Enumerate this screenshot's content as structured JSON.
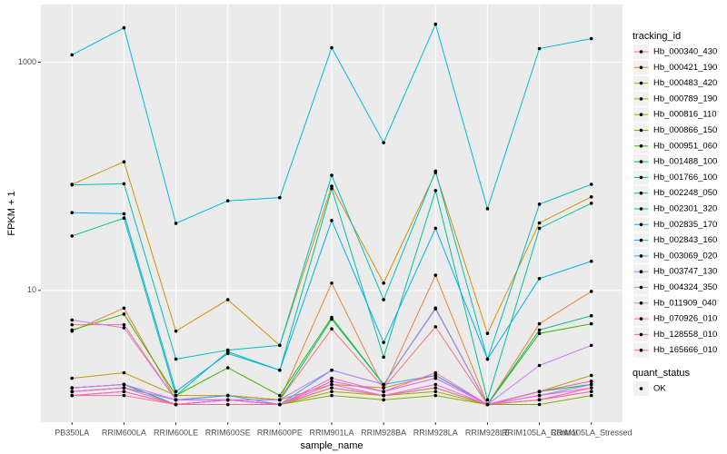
{
  "chart_data": {
    "type": "line",
    "x_label": "sample_name",
    "y_label": "FPKM + 1",
    "categories": [
      "PB350LA",
      "RRIM600LA",
      "RRIM600LE",
      "RRIM600SE",
      "RRIM600PE",
      "RRIM901LA",
      "RRIM928BA",
      "RRIM928LA",
      "RRIM928LE",
      "RRIM105LA_Control",
      "RRIM105LA_Stressed"
    ],
    "log_scale_y": true,
    "ylim": [
      0.7,
      3200
    ],
    "yticks": [
      10,
      1000
    ],
    "grid": true,
    "legend_title": "tracking_id",
    "legend_position": "right",
    "shape_legend": {
      "title": "quant_status",
      "labels": [
        "OK"
      ]
    },
    "series": [
      {
        "name": "Hb_000340_430",
        "color": "#F8766D",
        "values": [
          5.0,
          5.0,
          1.1,
          1.2,
          1.1,
          4.6,
          1.4,
          4.8,
          1.0,
          1.2,
          1.5
        ]
      },
      {
        "name": "Hb_000421_190",
        "color": "#EA8331",
        "values": [
          4.4,
          7.0,
          1.1,
          1.2,
          1.1,
          11.6,
          1.4,
          13.6,
          1.0,
          5.1,
          9.8
        ]
      },
      {
        "name": "Hb_000483_420",
        "color": "#D89000",
        "values": [
          85,
          134,
          4.4,
          8.3,
          3.3,
          82,
          11.6,
          108,
          4.2,
          39,
          66
        ]
      },
      {
        "name": "Hb_000789_190",
        "color": "#C09B00",
        "values": [
          1.7,
          1.9,
          1.2,
          1.2,
          1.1,
          1.5,
          1.4,
          1.8,
          1.0,
          1.3,
          1.8
        ]
      },
      {
        "name": "Hb_000816_110",
        "color": "#A3A500",
        "values": [
          1.3,
          1.4,
          1.1,
          1.1,
          1.0,
          1.3,
          1.2,
          1.3,
          1.0,
          1.1,
          1.3
        ]
      },
      {
        "name": "Hb_000866_150",
        "color": "#7CAE00",
        "values": [
          1.2,
          1.3,
          1.0,
          1.0,
          1.0,
          1.2,
          1.1,
          1.2,
          1.0,
          1.0,
          1.2
        ]
      },
      {
        "name": "Hb_000951_060",
        "color": "#39B600",
        "values": [
          4.5,
          6.2,
          1.2,
          2.1,
          1.2,
          5.8,
          1.5,
          7.0,
          1.0,
          4.2,
          5.1
        ]
      },
      {
        "name": "Hb_001488_100",
        "color": "#00BB4E",
        "values": [
          1.4,
          1.5,
          1.0,
          1.1,
          1.0,
          1.4,
          1.2,
          1.4,
          1.0,
          1.3,
          1.5
        ]
      },
      {
        "name": "Hb_001766_100",
        "color": "#00BF7D",
        "values": [
          1.4,
          1.5,
          1.0,
          1.1,
          1.1,
          5.6,
          1.5,
          6.9,
          1.0,
          4.5,
          6.0
        ]
      },
      {
        "name": "Hb_002248_050",
        "color": "#00C1A3",
        "values": [
          30,
          43,
          1.2,
          2.9,
          2.0,
          78,
          2.6,
          75,
          1.1,
          35,
          58
        ]
      },
      {
        "name": "Hb_002301_320",
        "color": "#00BFC4",
        "values": [
          84,
          86,
          2.5,
          3.0,
          3.3,
          102,
          8.3,
          111,
          2.5,
          57,
          85
        ]
      },
      {
        "name": "Hb_002835_170",
        "color": "#00BAE0",
        "values": [
          1158,
          2003,
          38.7,
          61,
          65,
          1340,
          197,
          2154,
          52,
          1316,
          1608
        ]
      },
      {
        "name": "Hb_002843_160",
        "color": "#00B0F6",
        "values": [
          48,
          47,
          1.3,
          2.8,
          2.0,
          41,
          3.5,
          35,
          2.5,
          12.7,
          18
        ]
      },
      {
        "name": "Hb_003069_020",
        "color": "#35A2FF",
        "values": [
          1.3,
          1.4,
          1.1,
          1.2,
          1.0,
          2.0,
          1.5,
          1.8,
          1.0,
          1.3,
          1.6
        ]
      },
      {
        "name": "Hb_003747_130",
        "color": "#9590FF",
        "values": [
          1.3,
          1.4,
          1.1,
          1.1,
          1.0,
          1.6,
          1.3,
          1.7,
          1.0,
          1.2,
          1.5
        ]
      },
      {
        "name": "Hb_004324_350",
        "color": "#C77CFF",
        "values": [
          5.5,
          4.7,
          1.1,
          1.1,
          1.1,
          2.0,
          1.5,
          7.0,
          1.0,
          2.2,
          3.3
        ]
      },
      {
        "name": "Hb_011909_040",
        "color": "#E76BF3",
        "values": [
          1.4,
          1.5,
          1.1,
          1.1,
          1.0,
          1.6,
          1.3,
          1.7,
          1.0,
          1.2,
          1.4
        ]
      },
      {
        "name": "Hb_070926_010",
        "color": "#FA62DB",
        "values": [
          1.2,
          1.3,
          1.0,
          1.1,
          1.0,
          1.5,
          1.2,
          1.5,
          1.0,
          1.1,
          1.3
        ]
      },
      {
        "name": "Hb_128558_010",
        "color": "#FF62BC",
        "values": [
          1.3,
          1.4,
          1.0,
          1.1,
          1.0,
          1.7,
          1.3,
          1.9,
          1.0,
          1.3,
          1.6
        ]
      },
      {
        "name": "Hb_165666_010",
        "color": "#FF6C91",
        "values": [
          1.2,
          1.2,
          1.0,
          1.0,
          1.0,
          1.4,
          1.2,
          1.4,
          1.0,
          1.1,
          1.4
        ]
      }
    ]
  }
}
